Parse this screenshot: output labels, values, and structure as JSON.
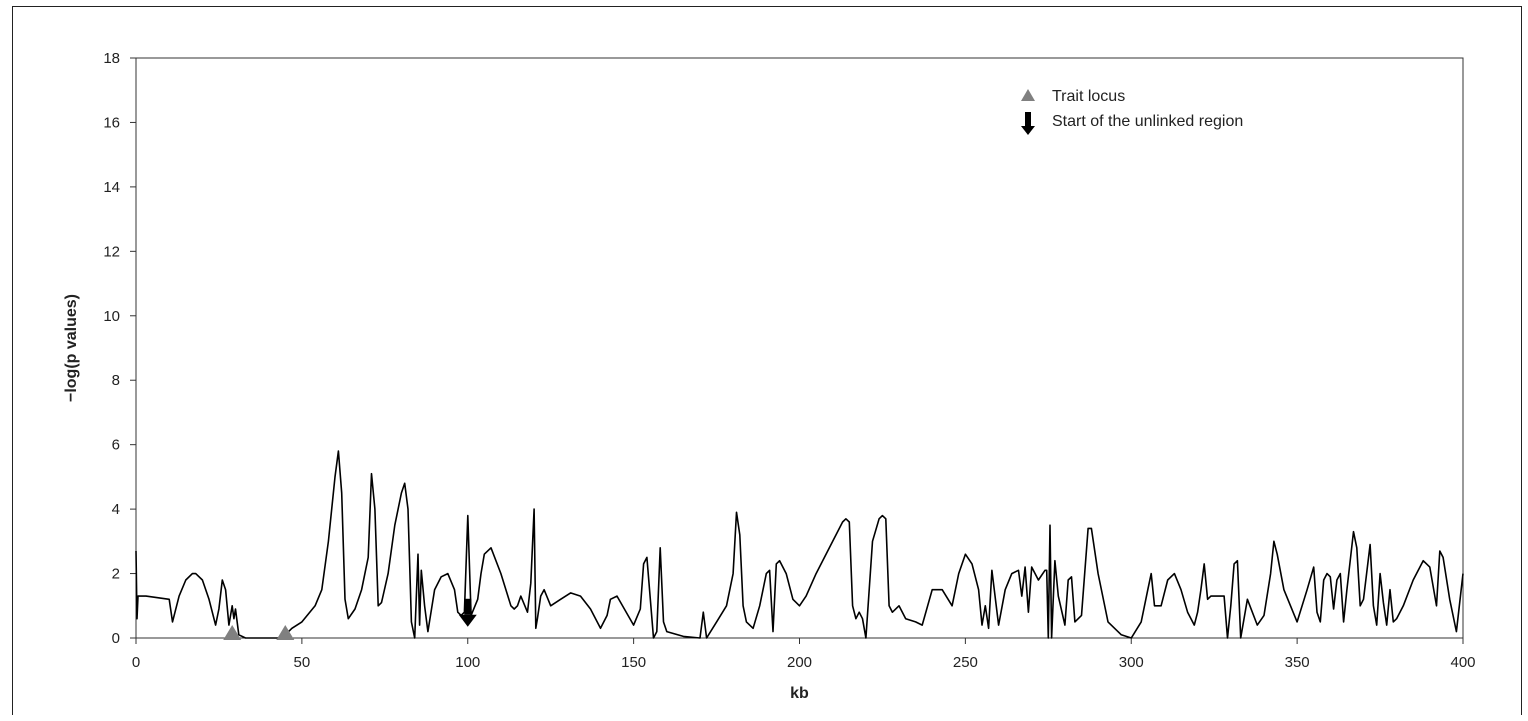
{
  "chart_data": {
    "type": "line",
    "title": "",
    "xlabel": "kb",
    "ylabel": "−log(p values)",
    "xlim": [
      0,
      400
    ],
    "ylim": [
      0,
      18
    ],
    "x_ticks": [
      0,
      50,
      100,
      150,
      200,
      250,
      300,
      350,
      400
    ],
    "y_ticks": [
      0,
      2,
      4,
      6,
      8,
      10,
      12,
      14,
      16,
      18
    ],
    "grid": false,
    "legend_position": "top-right",
    "legend": [
      {
        "label": "Trait locus",
        "marker": "triangle",
        "color": "#808080"
      },
      {
        "label": "Start of the unlinked region",
        "marker": "down-arrow",
        "color": "#000000"
      }
    ],
    "series": [
      {
        "color": "#000000",
        "x": [
          0,
          0.3,
          0.6,
          1,
          3,
          10,
          11,
          13,
          15,
          17,
          18,
          20,
          22,
          24,
          25,
          26,
          27,
          28,
          29,
          29.5,
          30,
          31,
          33,
          36,
          40,
          44,
          45,
          47,
          50,
          54,
          56,
          58,
          60,
          61,
          62,
          63,
          64,
          66,
          68,
          70,
          71,
          72,
          73,
          74,
          76,
          78,
          80,
          81,
          82,
          83,
          84,
          85,
          85.5,
          86,
          87,
          88,
          90,
          92,
          94,
          96,
          97,
          98,
          99,
          100,
          101,
          103,
          104,
          105,
          107,
          110,
          113,
          114,
          115,
          116,
          118,
          119,
          120,
          120.5,
          121,
          122,
          123,
          125,
          128,
          131,
          134,
          137,
          140,
          142,
          143,
          145,
          150,
          152,
          153,
          154,
          156,
          157,
          158,
          159,
          160,
          165,
          170,
          171,
          172,
          175,
          178,
          180,
          181,
          182,
          183,
          184,
          186,
          188,
          190,
          191,
          192,
          193,
          194,
          196,
          198,
          200,
          202,
          205,
          210,
          213,
          214,
          215,
          216,
          217,
          218,
          219,
          220,
          222,
          224,
          225,
          226,
          227,
          228,
          230,
          232,
          235,
          237,
          240,
          243,
          246,
          248,
          250,
          252,
          254,
          255,
          256,
          257,
          258,
          260,
          262,
          264,
          266,
          267,
          268,
          269,
          270,
          272,
          274,
          274.5,
          275,
          275.5,
          276,
          277,
          278,
          280,
          281,
          282,
          283,
          285,
          287,
          288,
          290,
          293,
          297,
          300,
          303,
          305,
          306,
          307,
          309,
          311,
          313,
          315,
          317,
          319,
          320,
          321,
          322,
          323,
          324,
          326,
          328,
          329,
          330,
          331,
          332,
          333,
          335,
          338,
          340,
          342,
          343,
          344,
          346,
          350,
          353,
          355,
          356,
          357,
          358,
          359,
          360,
          361,
          362,
          363,
          364,
          365,
          367,
          368,
          369,
          370,
          372,
          373,
          374,
          375,
          376,
          377,
          378,
          379,
          380,
          382,
          385,
          388,
          390,
          392,
          393,
          394,
          396,
          398,
          400
        ],
        "y": [
          2.7,
          0.6,
          1.3,
          1.3,
          1.3,
          1.2,
          0.5,
          1.3,
          1.8,
          2.0,
          2.0,
          1.8,
          1.2,
          0.4,
          0.9,
          1.8,
          1.5,
          0.4,
          1.0,
          0.6,
          0.9,
          0.1,
          0.0,
          0.0,
          0.0,
          0.0,
          0.1,
          0.3,
          0.5,
          1.0,
          1.5,
          3.0,
          5.0,
          5.8,
          4.5,
          1.2,
          0.6,
          0.9,
          1.5,
          2.5,
          5.1,
          4.0,
          1.0,
          1.1,
          2.0,
          3.5,
          4.5,
          4.8,
          4.0,
          0.5,
          0.0,
          2.6,
          0.4,
          2.1,
          1.0,
          0.2,
          1.5,
          1.9,
          2.0,
          1.5,
          0.8,
          0.7,
          0.8,
          3.8,
          0.7,
          1.2,
          2.0,
          2.6,
          2.8,
          2.0,
          1.0,
          0.9,
          1.0,
          1.3,
          0.8,
          1.7,
          4.0,
          0.3,
          0.6,
          1.3,
          1.5,
          1.0,
          1.2,
          1.4,
          1.3,
          0.9,
          0.3,
          0.7,
          1.2,
          1.3,
          0.4,
          0.9,
          2.3,
          2.5,
          0.0,
          0.2,
          2.8,
          0.5,
          0.2,
          0.05,
          0.0,
          0.8,
          0.0,
          0.5,
          1.0,
          2.0,
          3.9,
          3.2,
          1.0,
          0.5,
          0.3,
          1.0,
          2.0,
          2.1,
          0.2,
          2.3,
          2.4,
          2.0,
          1.2,
          1.0,
          1.3,
          2.0,
          3.0,
          3.6,
          3.7,
          3.6,
          1.0,
          0.6,
          0.8,
          0.6,
          0.0,
          3.0,
          3.7,
          3.8,
          3.7,
          1.0,
          0.8,
          1.0,
          0.6,
          0.5,
          0.4,
          1.5,
          1.5,
          1.0,
          2.0,
          2.6,
          2.3,
          1.5,
          0.4,
          1.0,
          0.3,
          2.1,
          0.4,
          1.5,
          2.0,
          2.1,
          1.3,
          2.2,
          0.8,
          2.2,
          1.8,
          2.1,
          2.1,
          0.0,
          3.5,
          0.0,
          2.4,
          1.3,
          0.4,
          1.8,
          1.9,
          0.5,
          0.7,
          3.4,
          3.4,
          2.0,
          0.5,
          0.1,
          0.0,
          0.5,
          1.5,
          2.0,
          1.0,
          1.0,
          1.8,
          2.0,
          1.5,
          0.8,
          0.4,
          0.8,
          1.5,
          2.3,
          1.2,
          1.3,
          1.3,
          1.3,
          0.0,
          1.0,
          2.3,
          2.4,
          0.0,
          1.2,
          0.4,
          0.7,
          2.0,
          3.0,
          2.6,
          1.5,
          0.5,
          1.5,
          2.2,
          0.8,
          0.5,
          1.8,
          2.0,
          1.9,
          0.9,
          1.8,
          2.0,
          0.5,
          1.5,
          3.3,
          2.8,
          1.0,
          1.2,
          2.9,
          1.0,
          0.4,
          2.0,
          1.1,
          0.4,
          1.5,
          0.5,
          0.6,
          1.0,
          1.8,
          2.4,
          2.2,
          1.0,
          2.7,
          2.5,
          1.2,
          0.2,
          2.0
        ]
      }
    ],
    "annotations": [
      {
        "type": "trait-locus",
        "marker": "triangle",
        "x": 29,
        "y": 0
      },
      {
        "type": "trait-locus",
        "marker": "triangle",
        "x": 45,
        "y": 0
      },
      {
        "type": "unlinked-region-start",
        "marker": "down-arrow",
        "x": 100,
        "y": 1
      }
    ]
  }
}
